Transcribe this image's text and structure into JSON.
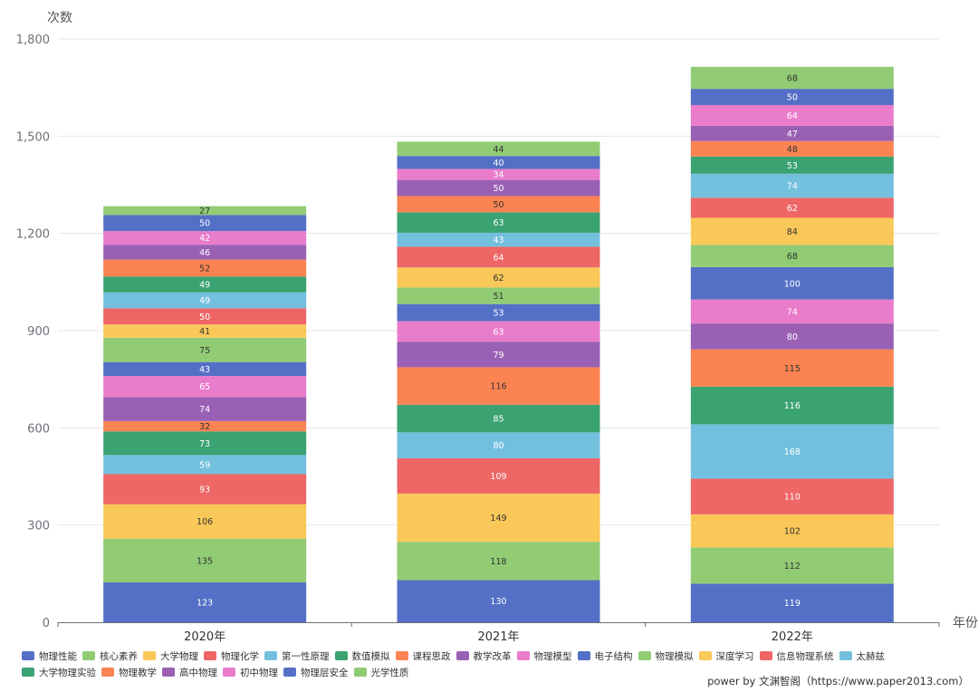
{
  "power_text": "power by 文渊智阁（https://www.paper2013.com）",
  "chart_data": {
    "type": "bar",
    "stacked": true,
    "ylabel": "次数",
    "xlabel": "年份",
    "ylim": [
      0,
      1800
    ],
    "yticks": [
      "0",
      "300",
      "600",
      "900",
      "1,200",
      "1,500",
      "1,800"
    ],
    "categories": [
      "2020年",
      "2021年",
      "2022年"
    ],
    "grid": true,
    "legend_position": "bottom",
    "series": [
      {
        "name": "物理性能",
        "color": "#5470c6",
        "values": [
          123,
          130,
          119
        ]
      },
      {
        "name": "核心素养",
        "color": "#91cc75",
        "values": [
          135,
          118,
          112
        ]
      },
      {
        "name": "大学物理",
        "color": "#fac858",
        "values": [
          106,
          149,
          102
        ]
      },
      {
        "name": "物理化学",
        "color": "#ee6666",
        "values": [
          93,
          109,
          110
        ]
      },
      {
        "name": "第一性原理",
        "color": "#73c0de",
        "values": [
          59,
          80,
          168
        ]
      },
      {
        "name": "数值模拟",
        "color": "#3ba272",
        "values": [
          73,
          85,
          116
        ]
      },
      {
        "name": "课程思政",
        "color": "#fc8452",
        "values": [
          32,
          116,
          115
        ]
      },
      {
        "name": "教学改革",
        "color": "#9a60b4",
        "values": [
          74,
          79,
          80
        ]
      },
      {
        "name": "物理模型",
        "color": "#ea7ccc",
        "values": [
          65,
          63,
          74
        ]
      },
      {
        "name": "电子结构",
        "color": "#5470c6",
        "values": [
          43,
          53,
          100
        ]
      },
      {
        "name": "物理模拟",
        "color": "#91cc75",
        "values": [
          75,
          51,
          68
        ]
      },
      {
        "name": "深度学习",
        "color": "#fac858",
        "values": [
          41,
          62,
          84
        ]
      },
      {
        "name": "信息物理系统",
        "color": "#ee6666",
        "values": [
          50,
          64,
          62
        ]
      },
      {
        "name": "太赫兹",
        "color": "#73c0de",
        "values": [
          49,
          43,
          74
        ]
      },
      {
        "name": "大学物理实验",
        "color": "#3ba272",
        "values": [
          49,
          63,
          53
        ]
      },
      {
        "name": "物理教学",
        "color": "#fc8452",
        "values": [
          52,
          50,
          48
        ]
      },
      {
        "name": "高中物理",
        "color": "#9a60b4",
        "values": [
          46,
          50,
          47
        ]
      },
      {
        "name": "初中物理",
        "color": "#ea7ccc",
        "values": [
          42,
          34,
          64
        ]
      },
      {
        "name": "物理层安全",
        "color": "#5470c6",
        "values": [
          50,
          40,
          50
        ]
      },
      {
        "name": "光学性质",
        "color": "#91cc75",
        "values": [
          27,
          44,
          68
        ]
      }
    ]
  }
}
